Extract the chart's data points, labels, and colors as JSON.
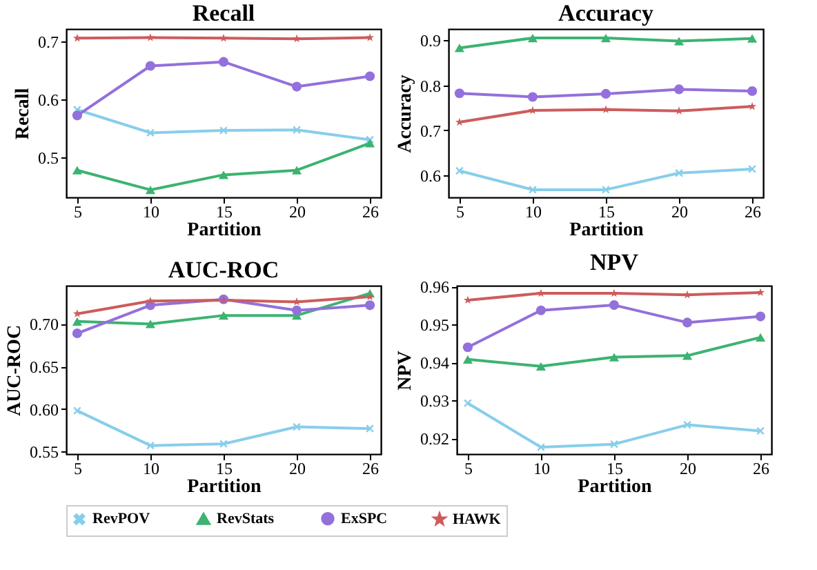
{
  "chart_data": [
    {
      "type": "line",
      "title": "Recall",
      "xlabel": "Partition",
      "ylabel": "Recall",
      "categories": [
        "5",
        "10",
        "15",
        "20",
        "26"
      ],
      "ylim": [
        0.43,
        0.722
      ],
      "yticks": [
        0.5,
        0.6,
        0.7
      ],
      "grid": false,
      "legend": "bottom",
      "series": [
        {
          "name": "RevPOV",
          "color": "#87ceeb",
          "marker": "cross",
          "values": [
            0.582,
            0.542,
            0.546,
            0.547,
            0.53
          ]
        },
        {
          "name": "RevStats",
          "color": "#3cb371",
          "marker": "triangle",
          "values": [
            0.477,
            0.443,
            0.469,
            0.477,
            0.524
          ]
        },
        {
          "name": "ExSPC",
          "color": "#9370db",
          "marker": "circle",
          "values": [
            0.572,
            0.658,
            0.665,
            0.622,
            0.64
          ]
        },
        {
          "name": "HAWK",
          "color": "#cd5c5c",
          "marker": "star",
          "values": [
            0.706,
            0.707,
            0.706,
            0.705,
            0.707
          ]
        }
      ]
    },
    {
      "type": "line",
      "title": "Accuracy",
      "xlabel": "Partition",
      "ylabel": "Accuracy",
      "categories": [
        "5",
        "10",
        "15",
        "20",
        "26"
      ],
      "ylim": [
        0.551,
        0.925
      ],
      "yticks": [
        0.6,
        0.7,
        0.8,
        0.9
      ],
      "grid": false,
      "legend": "bottom",
      "series": [
        {
          "name": "RevPOV",
          "color": "#87ceeb",
          "marker": "cross",
          "values": [
            0.61,
            0.568,
            0.568,
            0.605,
            0.614
          ]
        },
        {
          "name": "RevStats",
          "color": "#3cb371",
          "marker": "triangle",
          "values": [
            0.883,
            0.905,
            0.905,
            0.898,
            0.904
          ]
        },
        {
          "name": "ExSPC",
          "color": "#9370db",
          "marker": "circle",
          "values": [
            0.782,
            0.774,
            0.781,
            0.791,
            0.787
          ]
        },
        {
          "name": "HAWK",
          "color": "#cd5c5c",
          "marker": "star",
          "values": [
            0.718,
            0.744,
            0.746,
            0.743,
            0.753
          ]
        }
      ]
    },
    {
      "type": "line",
      "title": "AUC-ROC",
      "xlabel": "Partition",
      "ylabel": "AUC-ROC",
      "categories": [
        "5",
        "10",
        "15",
        "20",
        "26"
      ],
      "ylim": [
        0.547,
        0.745
      ],
      "yticks": [
        {
          "value": 0.55,
          "label": "0.55"
        },
        {
          "value": 0.6,
          "label": "0.60"
        },
        0.65,
        {
          "value": 0.7,
          "label": "0.70"
        }
      ],
      "grid": false,
      "legend": "bottom",
      "series": [
        {
          "name": "RevPOV",
          "color": "#87ceeb",
          "marker": "cross",
          "values": [
            0.598,
            0.557,
            0.559,
            0.579,
            0.577
          ]
        },
        {
          "name": "RevStats",
          "color": "#3cb371",
          "marker": "triangle",
          "values": [
            0.703,
            0.7,
            0.71,
            0.71,
            0.736
          ]
        },
        {
          "name": "ExSPC",
          "color": "#9370db",
          "marker": "circle",
          "values": [
            0.689,
            0.722,
            0.729,
            0.716,
            0.722
          ]
        },
        {
          "name": "HAWK",
          "color": "#cd5c5c",
          "marker": "star",
          "values": [
            0.712,
            0.727,
            0.728,
            0.726,
            0.732
          ]
        }
      ]
    },
    {
      "type": "line",
      "title": "NPV",
      "xlabel": "Partition",
      "ylabel": "NPV",
      "categories": [
        "5",
        "10",
        "15",
        "20",
        "26"
      ],
      "ylim": [
        0.9159,
        0.9602
      ],
      "yticks": [
        0.92,
        0.93,
        0.94,
        0.95,
        0.96
      ],
      "grid": false,
      "legend": "bottom",
      "series": [
        {
          "name": "RevPOV",
          "color": "#87ceeb",
          "marker": "cross",
          "values": [
            0.9293,
            0.9177,
            0.9185,
            0.9236,
            0.922
          ]
        },
        {
          "name": "RevStats",
          "color": "#3cb371",
          "marker": "triangle",
          "values": [
            0.9408,
            0.939,
            0.9414,
            0.9418,
            0.9466
          ]
        },
        {
          "name": "ExSPC",
          "color": "#9370db",
          "marker": "circle",
          "values": [
            0.944,
            0.9537,
            0.9551,
            0.9505,
            0.9521
          ]
        },
        {
          "name": "HAWK",
          "color": "#cd5c5c",
          "marker": "star",
          "values": [
            0.9564,
            0.9582,
            0.9582,
            0.9578,
            0.9584
          ]
        }
      ]
    }
  ]
}
